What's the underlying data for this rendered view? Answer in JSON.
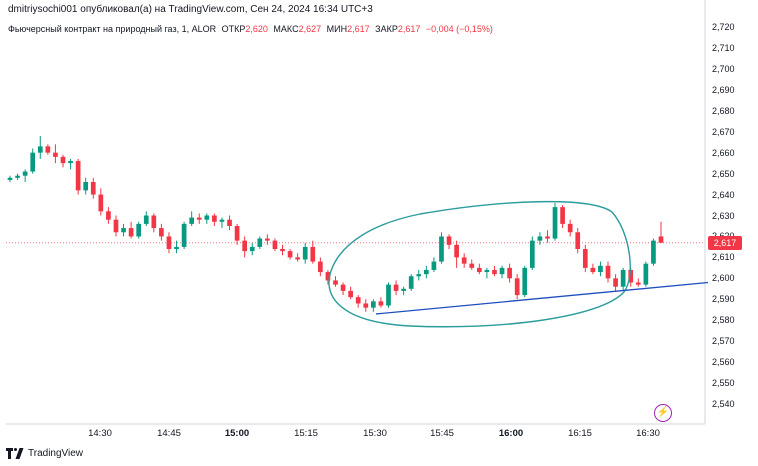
{
  "header": {
    "published": "dmitriysochi001 опубликовал(а) на TradingView.com, Сен 24, 2024 16:34 UTC+3"
  },
  "legend": {
    "symbol": "Фьючерсный контракт на природный газ, 1, ALOR",
    "open_label": "ОТКР",
    "open_value": "2,620",
    "high_label": "МАКС",
    "high_value": "2,627",
    "low_label": "МИН",
    "low_value": "2,617",
    "close_label": "ЗАКР",
    "close_value": "2,617",
    "change": "−0,004 (−0,15%)"
  },
  "last_price_tag": "2,617",
  "footer": {
    "brand": "TradingView"
  },
  "colors": {
    "up": "#089981",
    "down": "#f23645",
    "ellipse": "#2a9d9c",
    "trendline": "#1f4fbf"
  },
  "icons": {
    "flash": "flash-icon",
    "logo": "tradingview-logo-icon"
  },
  "chart_data": {
    "type": "candlestick",
    "x_tick_labels": [
      "14:30",
      "14:45",
      "15:00",
      "15:15",
      "15:30",
      "15:45",
      "16:00",
      "16:15",
      "16:30"
    ],
    "y_tick_labels": [
      "2,720",
      "2,710",
      "2,700",
      "2,690",
      "2,680",
      "2,670",
      "2,660",
      "2,650",
      "2,640",
      "2,630",
      "2,620",
      "2,610",
      "2,600",
      "2,590",
      "2,580",
      "2,570",
      "2,560",
      "2,550",
      "2,540"
    ],
    "ylim": [
      2.534,
      2.724
    ],
    "candles": [
      {
        "o": 2.647,
        "h": 2.649,
        "l": 2.646,
        "c": 2.648
      },
      {
        "o": 2.648,
        "h": 2.65,
        "l": 2.647,
        "c": 2.649
      },
      {
        "o": 2.649,
        "h": 2.652,
        "l": 2.646,
        "c": 2.651
      },
      {
        "o": 2.651,
        "h": 2.662,
        "l": 2.65,
        "c": 2.66
      },
      {
        "o": 2.66,
        "h": 2.668,
        "l": 2.657,
        "c": 2.663
      },
      {
        "o": 2.663,
        "h": 2.664,
        "l": 2.659,
        "c": 2.66
      },
      {
        "o": 2.66,
        "h": 2.664,
        "l": 2.655,
        "c": 2.658
      },
      {
        "o": 2.658,
        "h": 2.659,
        "l": 2.653,
        "c": 2.655
      },
      {
        "o": 2.655,
        "h": 2.657,
        "l": 2.652,
        "c": 2.656
      },
      {
        "o": 2.656,
        "h": 2.657,
        "l": 2.64,
        "c": 2.642
      },
      {
        "o": 2.642,
        "h": 2.648,
        "l": 2.64,
        "c": 2.646
      },
      {
        "o": 2.646,
        "h": 2.648,
        "l": 2.638,
        "c": 2.64
      },
      {
        "o": 2.64,
        "h": 2.643,
        "l": 2.63,
        "c": 2.632
      },
      {
        "o": 2.632,
        "h": 2.634,
        "l": 2.626,
        "c": 2.628
      },
      {
        "o": 2.628,
        "h": 2.63,
        "l": 2.62,
        "c": 2.622
      },
      {
        "o": 2.622,
        "h": 2.626,
        "l": 2.62,
        "c": 2.624
      },
      {
        "o": 2.624,
        "h": 2.627,
        "l": 2.619,
        "c": 2.62
      },
      {
        "o": 2.62,
        "h": 2.627,
        "l": 2.619,
        "c": 2.626
      },
      {
        "o": 2.626,
        "h": 2.632,
        "l": 2.625,
        "c": 2.63
      },
      {
        "o": 2.63,
        "h": 2.631,
        "l": 2.622,
        "c": 2.624
      },
      {
        "o": 2.624,
        "h": 2.626,
        "l": 2.618,
        "c": 2.62
      },
      {
        "o": 2.62,
        "h": 2.622,
        "l": 2.612,
        "c": 2.614
      },
      {
        "o": 2.614,
        "h": 2.618,
        "l": 2.612,
        "c": 2.615
      },
      {
        "o": 2.615,
        "h": 2.627,
        "l": 2.614,
        "c": 2.626
      },
      {
        "o": 2.626,
        "h": 2.632,
        "l": 2.625,
        "c": 2.629
      },
      {
        "o": 2.629,
        "h": 2.631,
        "l": 2.626,
        "c": 2.628
      },
      {
        "o": 2.628,
        "h": 2.631,
        "l": 2.626,
        "c": 2.63
      },
      {
        "o": 2.63,
        "h": 2.631,
        "l": 2.625,
        "c": 2.627
      },
      {
        "o": 2.627,
        "h": 2.629,
        "l": 2.624,
        "c": 2.628
      },
      {
        "o": 2.628,
        "h": 2.63,
        "l": 2.623,
        "c": 2.625
      },
      {
        "o": 2.625,
        "h": 2.626,
        "l": 2.616,
        "c": 2.618
      },
      {
        "o": 2.618,
        "h": 2.62,
        "l": 2.61,
        "c": 2.613
      },
      {
        "o": 2.613,
        "h": 2.617,
        "l": 2.611,
        "c": 2.615
      },
      {
        "o": 2.615,
        "h": 2.62,
        "l": 2.614,
        "c": 2.619
      },
      {
        "o": 2.619,
        "h": 2.621,
        "l": 2.616,
        "c": 2.618
      },
      {
        "o": 2.618,
        "h": 2.619,
        "l": 2.613,
        "c": 2.614
      },
      {
        "o": 2.614,
        "h": 2.616,
        "l": 2.611,
        "c": 2.613
      },
      {
        "o": 2.613,
        "h": 2.614,
        "l": 2.609,
        "c": 2.61
      },
      {
        "o": 2.61,
        "h": 2.612,
        "l": 2.608,
        "c": 2.609
      },
      {
        "o": 2.609,
        "h": 2.617,
        "l": 2.607,
        "c": 2.615
      },
      {
        "o": 2.615,
        "h": 2.618,
        "l": 2.607,
        "c": 2.608
      },
      {
        "o": 2.608,
        "h": 2.61,
        "l": 2.601,
        "c": 2.603
      },
      {
        "o": 2.603,
        "h": 2.604,
        "l": 2.597,
        "c": 2.599
      },
      {
        "o": 2.599,
        "h": 2.601,
        "l": 2.596,
        "c": 2.597
      },
      {
        "o": 2.597,
        "h": 2.598,
        "l": 2.592,
        "c": 2.594
      },
      {
        "o": 2.594,
        "h": 2.596,
        "l": 2.59,
        "c": 2.591
      },
      {
        "o": 2.591,
        "h": 2.592,
        "l": 2.586,
        "c": 2.588
      },
      {
        "o": 2.588,
        "h": 2.59,
        "l": 2.584,
        "c": 2.586
      },
      {
        "o": 2.586,
        "h": 2.59,
        "l": 2.584,
        "c": 2.589
      },
      {
        "o": 2.589,
        "h": 2.591,
        "l": 2.586,
        "c": 2.587
      },
      {
        "o": 2.587,
        "h": 2.598,
        "l": 2.586,
        "c": 2.597
      },
      {
        "o": 2.597,
        "h": 2.599,
        "l": 2.592,
        "c": 2.594
      },
      {
        "o": 2.594,
        "h": 2.596,
        "l": 2.592,
        "c": 2.595
      },
      {
        "o": 2.595,
        "h": 2.602,
        "l": 2.594,
        "c": 2.601
      },
      {
        "o": 2.601,
        "h": 2.604,
        "l": 2.599,
        "c": 2.602
      },
      {
        "o": 2.602,
        "h": 2.606,
        "l": 2.6,
        "c": 2.604
      },
      {
        "o": 2.604,
        "h": 2.61,
        "l": 2.603,
        "c": 2.608
      },
      {
        "o": 2.608,
        "h": 2.622,
        "l": 2.607,
        "c": 2.62
      },
      {
        "o": 2.62,
        "h": 2.621,
        "l": 2.614,
        "c": 2.616
      },
      {
        "o": 2.616,
        "h": 2.618,
        "l": 2.605,
        "c": 2.61
      },
      {
        "o": 2.61,
        "h": 2.612,
        "l": 2.605,
        "c": 2.607
      },
      {
        "o": 2.607,
        "h": 2.609,
        "l": 2.604,
        "c": 2.605
      },
      {
        "o": 2.605,
        "h": 2.607,
        "l": 2.602,
        "c": 2.603
      },
      {
        "o": 2.603,
        "h": 2.605,
        "l": 2.6,
        "c": 2.604
      },
      {
        "o": 2.604,
        "h": 2.606,
        "l": 2.601,
        "c": 2.602
      },
      {
        "o": 2.602,
        "h": 2.606,
        "l": 2.6,
        "c": 2.605
      },
      {
        "o": 2.605,
        "h": 2.607,
        "l": 2.598,
        "c": 2.6
      },
      {
        "o": 2.6,
        "h": 2.602,
        "l": 2.59,
        "c": 2.592
      },
      {
        "o": 2.592,
        "h": 2.606,
        "l": 2.591,
        "c": 2.605
      },
      {
        "o": 2.605,
        "h": 2.62,
        "l": 2.604,
        "c": 2.618
      },
      {
        "o": 2.618,
        "h": 2.622,
        "l": 2.616,
        "c": 2.62
      },
      {
        "o": 2.62,
        "h": 2.623,
        "l": 2.617,
        "c": 2.619
      },
      {
        "o": 2.619,
        "h": 2.636,
        "l": 2.618,
        "c": 2.634
      },
      {
        "o": 2.634,
        "h": 2.635,
        "l": 2.624,
        "c": 2.626
      },
      {
        "o": 2.626,
        "h": 2.628,
        "l": 2.62,
        "c": 2.622
      },
      {
        "o": 2.622,
        "h": 2.624,
        "l": 2.612,
        "c": 2.614
      },
      {
        "o": 2.614,
        "h": 2.616,
        "l": 2.603,
        "c": 2.605
      },
      {
        "o": 2.605,
        "h": 2.607,
        "l": 2.602,
        "c": 2.603
      },
      {
        "o": 2.603,
        "h": 2.608,
        "l": 2.601,
        "c": 2.606
      },
      {
        "o": 2.606,
        "h": 2.608,
        "l": 2.598,
        "c": 2.6
      },
      {
        "o": 2.6,
        "h": 2.602,
        "l": 2.594,
        "c": 2.596
      },
      {
        "o": 2.596,
        "h": 2.605,
        "l": 2.594,
        "c": 2.604
      },
      {
        "o": 2.604,
        "h": 2.605,
        "l": 2.596,
        "c": 2.598
      },
      {
        "o": 2.598,
        "h": 2.6,
        "l": 2.596,
        "c": 2.597
      },
      {
        "o": 2.597,
        "h": 2.608,
        "l": 2.596,
        "c": 2.607
      },
      {
        "o": 2.607,
        "h": 2.619,
        "l": 2.606,
        "c": 2.618
      },
      {
        "o": 2.62,
        "h": 2.627,
        "l": 2.617,
        "c": 2.617
      }
    ],
    "last_price": 2.617
  }
}
